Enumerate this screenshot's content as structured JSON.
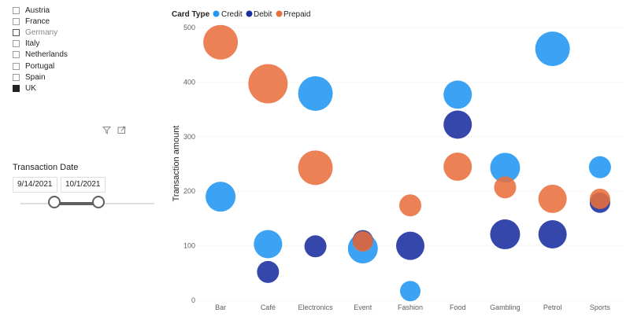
{
  "country_slicer": {
    "items": [
      {
        "label": "Austria",
        "checked": false,
        "dim": false
      },
      {
        "label": "France",
        "checked": false,
        "dim": false
      },
      {
        "label": "Germany",
        "checked": false,
        "dim": true
      },
      {
        "label": "Italy",
        "checked": false,
        "dim": false
      },
      {
        "label": "Netherlands",
        "checked": false,
        "dim": false
      },
      {
        "label": "Portugal",
        "checked": false,
        "dim": false
      },
      {
        "label": "Spain",
        "checked": false,
        "dim": false
      },
      {
        "label": "UK",
        "checked": true,
        "dim": false
      }
    ]
  },
  "date_slicer": {
    "title": "Transaction Date",
    "start": "9/14/2021",
    "end": "10/1/2021",
    "range_start_fraction": 0.25,
    "range_end_fraction": 0.58
  },
  "colors": {
    "Credit": "#2196f3",
    "Debit": "#1a2ea0",
    "Prepaid": "#e8703c"
  },
  "chart_data": {
    "type": "scatter",
    "legend_title": "Card Type",
    "legend_position": "top-left",
    "series_names": [
      "Credit",
      "Debit",
      "Prepaid"
    ],
    "categories": [
      "Bar",
      "Café",
      "Electronics",
      "Event",
      "Fashion",
      "Food",
      "Gambling",
      "Petrol",
      "Sports"
    ],
    "ylabel": "Transaction amount",
    "xlabel": "",
    "ylim": [
      0,
      500
    ],
    "yticks": [
      0,
      100,
      200,
      300,
      400,
      500
    ],
    "grid": true,
    "points": [
      {
        "category": "Bar",
        "series": "Prepaid",
        "y": 473,
        "size": 22
      },
      {
        "category": "Bar",
        "series": "Credit",
        "y": 190,
        "size": 19
      },
      {
        "category": "Café",
        "series": "Prepaid",
        "y": 397,
        "size": 25
      },
      {
        "category": "Café",
        "series": "Credit",
        "y": 103,
        "size": 18
      },
      {
        "category": "Café",
        "series": "Debit",
        "y": 52,
        "size": 14
      },
      {
        "category": "Electronics",
        "series": "Credit",
        "y": 379,
        "size": 22
      },
      {
        "category": "Electronics",
        "series": "Prepaid",
        "y": 243,
        "size": 22
      },
      {
        "category": "Electronics",
        "series": "Debit",
        "y": 99,
        "size": 14
      },
      {
        "category": "Event",
        "series": "Credit",
        "y": 95,
        "size": 19
      },
      {
        "category": "Event",
        "series": "Debit",
        "y": 110,
        "size": 13
      },
      {
        "category": "Event",
        "series": "Prepaid",
        "y": 108,
        "size": 13
      },
      {
        "category": "Fashion",
        "series": "Prepaid",
        "y": 174,
        "size": 14
      },
      {
        "category": "Fashion",
        "series": "Debit",
        "y": 100,
        "size": 18
      },
      {
        "category": "Fashion",
        "series": "Credit",
        "y": 17,
        "size": 13
      },
      {
        "category": "Food",
        "series": "Credit",
        "y": 377,
        "size": 18
      },
      {
        "category": "Food",
        "series": "Debit",
        "y": 322,
        "size": 18
      },
      {
        "category": "Food",
        "series": "Prepaid",
        "y": 245,
        "size": 18
      },
      {
        "category": "Gambling",
        "series": "Credit",
        "y": 243,
        "size": 19
      },
      {
        "category": "Gambling",
        "series": "Prepaid",
        "y": 207,
        "size": 14
      },
      {
        "category": "Gambling",
        "series": "Debit",
        "y": 121,
        "size": 19
      },
      {
        "category": "Petrol",
        "series": "Credit",
        "y": 461,
        "size": 22
      },
      {
        "category": "Petrol",
        "series": "Prepaid",
        "y": 186,
        "size": 18
      },
      {
        "category": "Petrol",
        "series": "Debit",
        "y": 121,
        "size": 18
      },
      {
        "category": "Sports",
        "series": "Credit",
        "y": 244,
        "size": 14
      },
      {
        "category": "Sports",
        "series": "Debit",
        "y": 179,
        "size": 13
      },
      {
        "category": "Sports",
        "series": "Prepaid",
        "y": 186,
        "size": 13
      }
    ]
  }
}
